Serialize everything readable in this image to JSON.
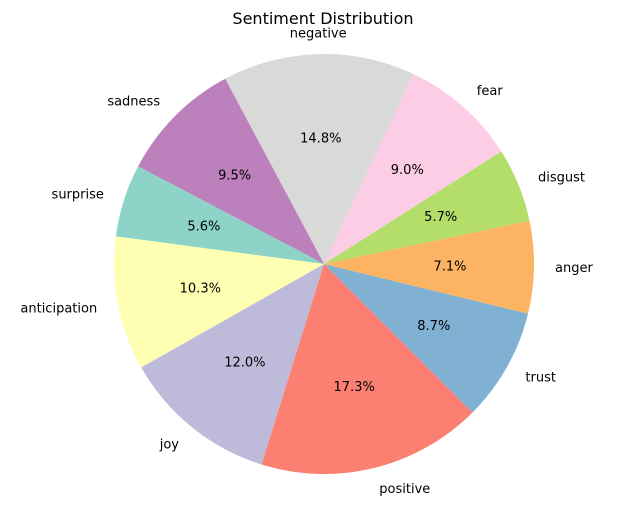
{
  "chart_data": {
    "type": "pie",
    "title": "Sentiment Distribution",
    "slices": [
      {
        "label": "fear",
        "percent": 9.0,
        "pct_label": "9.0%",
        "color": "#fccde5"
      },
      {
        "label": "negative",
        "percent": 14.8,
        "pct_label": "14.8%",
        "color": "#d9d9d9"
      },
      {
        "label": "sadness",
        "percent": 9.5,
        "pct_label": "9.5%",
        "color": "#bc80bd"
      },
      {
        "label": "surprise",
        "percent": 5.6,
        "pct_label": "5.6%",
        "color": "#8dd3c7"
      },
      {
        "label": "anticipation",
        "percent": 10.3,
        "pct_label": "10.3%",
        "color": "#ffffb3"
      },
      {
        "label": "joy",
        "percent": 12.0,
        "pct_label": "12.0%",
        "color": "#bebada"
      },
      {
        "label": "positive",
        "percent": 17.3,
        "pct_label": "17.3%",
        "color": "#fb8072"
      },
      {
        "label": "trust",
        "percent": 8.7,
        "pct_label": "8.7%",
        "color": "#80b1d3"
      },
      {
        "label": "anger",
        "percent": 7.1,
        "pct_label": "7.1%",
        "color": "#fdb462"
      },
      {
        "label": "disgust",
        "percent": 5.7,
        "pct_label": "5.7%",
        "color": "#b3de69"
      }
    ]
  }
}
